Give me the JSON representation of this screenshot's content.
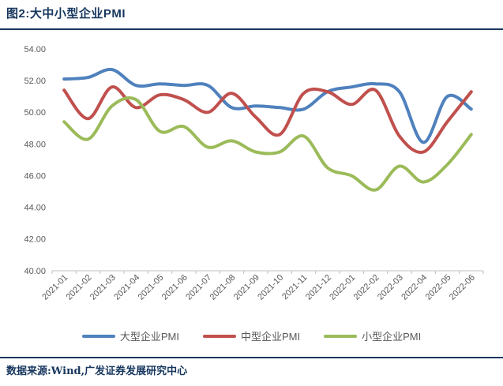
{
  "header": {
    "title": "图2:大中小型企业PMI"
  },
  "footer": {
    "source": "数据来源:Wind,广发证券发展研究中心"
  },
  "colors": {
    "accent_navy": "#17375E",
    "axis_line": "#BFBFBF",
    "tick_label": "#595959"
  },
  "chart_data": {
    "type": "line",
    "title": "大中小型企业PMI",
    "x": [
      "2021-01",
      "2021-02",
      "2021-03",
      "2021-04",
      "2021-05",
      "2021-06",
      "2021-07",
      "2021-08",
      "2021-09",
      "2021-10",
      "2021-11",
      "2021-12",
      "2022-01",
      "2022-02",
      "2022-03",
      "2022-04",
      "2022-05",
      "2022-06"
    ],
    "series": [
      {
        "name": "大型企业PMI",
        "color": "#4F81BD",
        "values": [
          52.1,
          52.2,
          52.7,
          51.7,
          51.8,
          51.7,
          51.7,
          50.3,
          50.4,
          50.3,
          50.2,
          51.3,
          51.6,
          51.8,
          51.3,
          48.1,
          51.0,
          50.2
        ]
      },
      {
        "name": "中型企业PMI",
        "color": "#C0504D",
        "values": [
          51.4,
          49.6,
          51.6,
          50.3,
          51.1,
          50.8,
          50.0,
          51.2,
          49.7,
          48.6,
          51.2,
          51.3,
          50.5,
          51.4,
          48.5,
          47.5,
          49.4,
          51.3
        ]
      },
      {
        "name": "小型企业PMI",
        "color": "#9BBB59",
        "values": [
          49.4,
          48.3,
          50.4,
          50.8,
          48.8,
          49.1,
          47.8,
          48.2,
          47.5,
          47.5,
          48.5,
          46.5,
          46.0,
          45.1,
          46.6,
          45.6,
          46.7,
          48.6
        ]
      }
    ],
    "ylim": [
      40,
      54
    ],
    "ytick_step": 2,
    "ytick_decimals": 2,
    "grid": false,
    "smooth": true,
    "legend_position": "bottom",
    "xlabel": "",
    "ylabel": ""
  }
}
